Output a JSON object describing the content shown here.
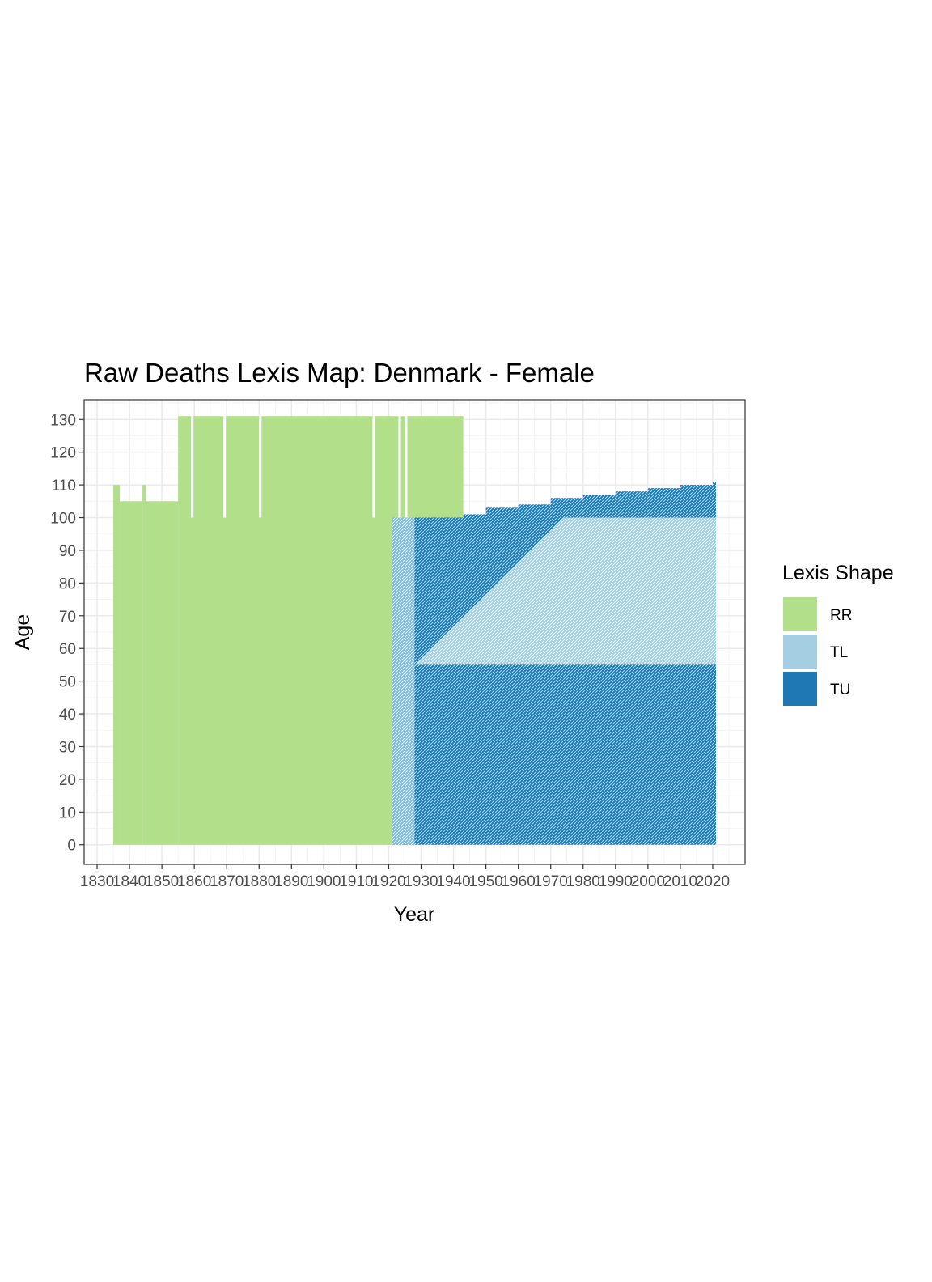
{
  "chart_data": {
    "type": "heatmap",
    "title": "Raw Deaths Lexis Map: Denmark - Female",
    "xlabel": "Year",
    "ylabel": "Age",
    "xlim": [
      1826,
      2030
    ],
    "ylim": [
      -6,
      136
    ],
    "x_ticks": [
      1830,
      1840,
      1850,
      1860,
      1870,
      1880,
      1890,
      1900,
      1910,
      1920,
      1930,
      1940,
      1950,
      1960,
      1970,
      1980,
      1990,
      2000,
      2010,
      2020
    ],
    "y_ticks": [
      0,
      10,
      20,
      30,
      40,
      50,
      60,
      70,
      80,
      90,
      100,
      110,
      120,
      130
    ],
    "grid": true,
    "legend": {
      "title": "Lexis Shape",
      "position": "right",
      "entries": [
        {
          "label": "RR",
          "color": "#b2df8a"
        },
        {
          "label": "TL",
          "color": "#a6cee3"
        },
        {
          "label": "TU",
          "color": "#1f78b4"
        }
      ]
    },
    "regions": [
      {
        "shape": "RR",
        "x": [
          1835,
          1837
        ],
        "y": [
          0,
          110
        ]
      },
      {
        "shape": "RR",
        "x": [
          1837,
          1844
        ],
        "y": [
          0,
          105
        ]
      },
      {
        "shape": "RR",
        "x": [
          1844,
          1845
        ],
        "y": [
          0,
          110
        ],
        "blank_below": 100
      },
      {
        "shape": "RR",
        "x": [
          1845,
          1855
        ],
        "y": [
          0,
          105
        ]
      },
      {
        "shape": "RR",
        "x": [
          1855,
          1921
        ],
        "y": [
          0,
          131
        ]
      },
      {
        "shape": "RR",
        "x": [
          1921,
          1943
        ],
        "y": [
          100,
          131
        ]
      },
      {
        "shape": "TU",
        "x": [
          1921,
          2021
        ],
        "y": [
          0,
          100
        ]
      },
      {
        "shape": "TL",
        "x": [
          1921,
          1928
        ],
        "y": [
          0,
          100
        ],
        "pattern": "mixed"
      },
      {
        "shape": "TL",
        "x": [
          1928,
          2021
        ],
        "y": [
          55,
          105
        ],
        "pattern": "above_diagonal"
      }
    ],
    "gaps_rr_years": [
      1859,
      1869,
      1880,
      1915,
      1923,
      1925
    ],
    "upper_edge": [
      {
        "year": 1943,
        "age": 101
      },
      {
        "year": 1950,
        "age": 103
      },
      {
        "year": 1960,
        "age": 104
      },
      {
        "year": 1970,
        "age": 106
      },
      {
        "year": 1980,
        "age": 107
      },
      {
        "year": 1990,
        "age": 108
      },
      {
        "year": 2000,
        "age": 109
      },
      {
        "year": 2010,
        "age": 110
      },
      {
        "year": 2020,
        "age": 111
      }
    ]
  }
}
